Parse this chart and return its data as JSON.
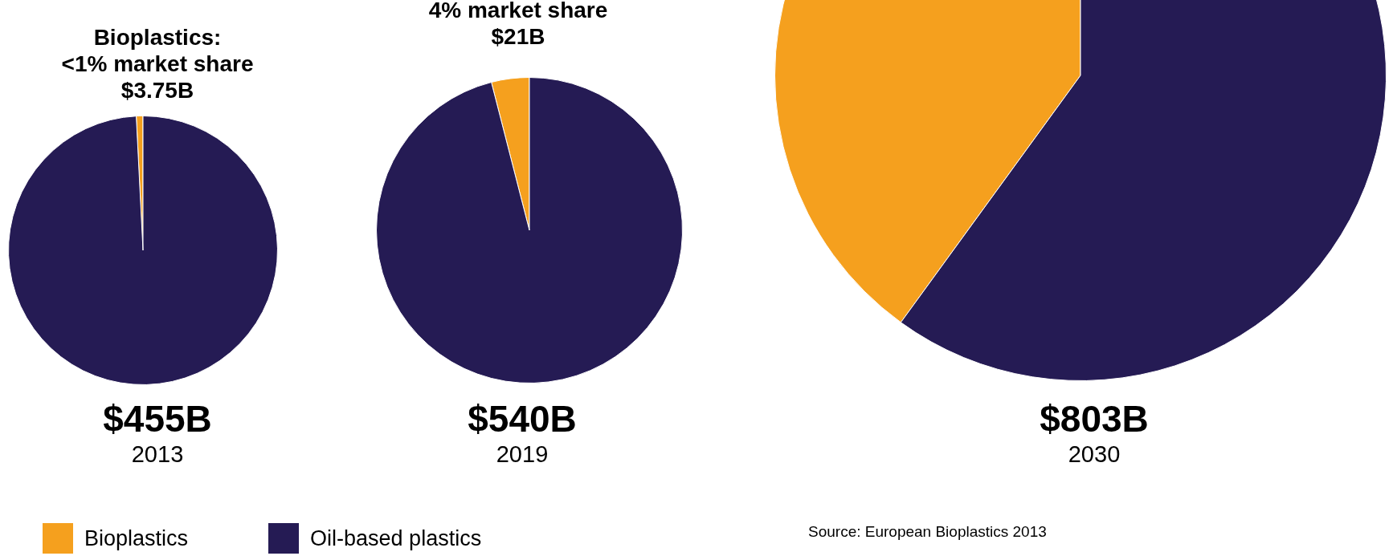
{
  "chart_data": [
    {
      "type": "pie",
      "title": "$455B",
      "subtitle": "2013",
      "categories": [
        "Bioplastics",
        "Oil-based plastics"
      ],
      "values": [
        0.8,
        99.2
      ],
      "colors": [
        "#f5a01e",
        "#251b54"
      ],
      "legend": "bottom",
      "annotations": [
        "Bioplastics:\n<1% market share\n$3.75B",
        "Source: European Bioplastics 2013"
      ]
    },
    {
      "type": "pie",
      "title": "$540B",
      "subtitle": "2019",
      "categories": [
        null,
        null
      ],
      "values": [
        4,
        96
      ],
      "colors": [
        "#f5a01e",
        "#251b54"
      ],
      "annotations": [
        "4% market share\n$21B"
      ]
    },
    {
      "type": "pie",
      "title": "$803B",
      "subtitle": "2030",
      "categories": [
        null,
        null
      ],
      "values": [
        40,
        60
      ],
      "colors": [
        "#f5a01e",
        "#251b54"
      ]
    }
  ]
}
